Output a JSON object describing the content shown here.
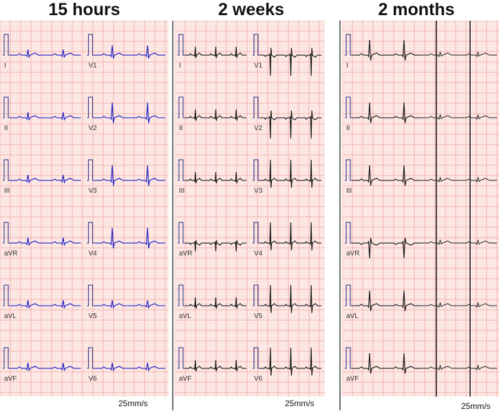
{
  "panels": [
    {
      "id": "p1",
      "title": "15 hours",
      "speed": "25mm/s",
      "trace_color": "#2020c8",
      "leads": [
        "I",
        "II",
        "III",
        "aVR",
        "aVL",
        "aVF",
        "V1",
        "V2",
        "V3",
        "V4",
        "V5",
        "V6"
      ]
    },
    {
      "id": "p2",
      "title": "2 weeks",
      "speed": "25mm/s",
      "trace_color": "#1a1a1a",
      "leads": [
        "I",
        "II",
        "III",
        "aVR",
        "aVL",
        "aVF",
        "V1",
        "V2",
        "V3",
        "V4",
        "V5",
        "V6"
      ]
    },
    {
      "id": "p3",
      "title": "2 months",
      "speed": "25mm/s",
      "trace_color": "#1a1a1a",
      "leads": [
        "I",
        "II",
        "III",
        "aVR",
        "aVL",
        "aVF"
      ]
    }
  ],
  "colors": {
    "grid_minor": "#f6c9c4",
    "grid_major": "#ee9a92",
    "paper": "#fff4f2",
    "calibration": "#3b3b8c"
  }
}
